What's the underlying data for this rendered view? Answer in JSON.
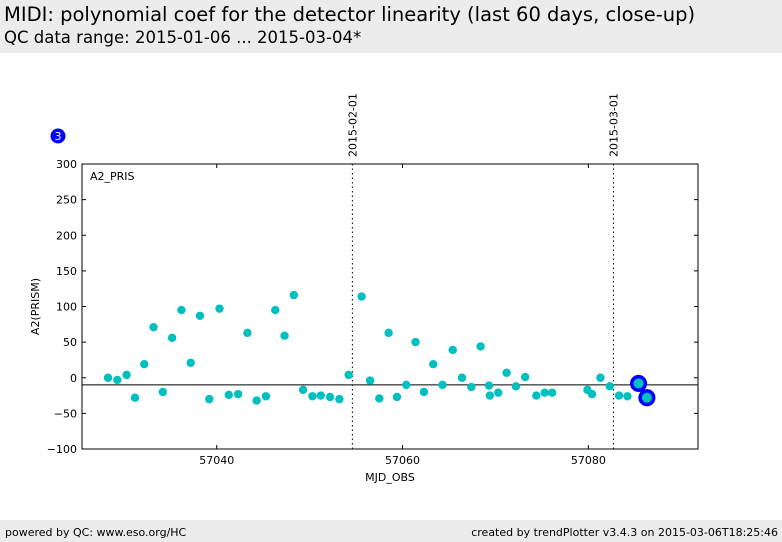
{
  "header": {
    "title": "MIDI: polynomial coef for the detector linearity (last 60 days, close-up)",
    "subtitle": "QC data range: 2015-01-06 ... 2015-03-04*"
  },
  "footer": {
    "left": "powered by QC: www.eso.org/HC",
    "right": "created by trendPlotter v3.4.3 on 2015-03-06T18:25:46"
  },
  "colors": {
    "points": "#00bfbf",
    "highlight": "#0000ff",
    "axis": "#000000"
  },
  "chart_data": {
    "type": "scatter",
    "title": "MIDI: polynomial coef for the detector linearity (last 60 days, close-up)",
    "xlabel": "MJD_OBS",
    "ylabel": "A2(PRISM)",
    "panel_label": "A2_PRIS",
    "xlim": [
      57025.5,
      57091.8
    ],
    "ylim": [
      -100,
      300
    ],
    "xticks": [
      57040,
      57060,
      57080
    ],
    "yticks": [
      -100,
      -50,
      0,
      50,
      100,
      150,
      200,
      250,
      300
    ],
    "reference_line_y": -10,
    "date_markers": [
      {
        "x": 57054.6,
        "label": "2015-02-01"
      },
      {
        "x": 57082.7,
        "label": "2015-03-01"
      }
    ],
    "count_badge": "3",
    "x": [
      57028.3,
      57029.3,
      57030.3,
      57031.2,
      57032.2,
      57033.2,
      57034.2,
      57035.2,
      57036.2,
      57037.2,
      57038.2,
      57039.2,
      57040.3,
      57041.3,
      57042.3,
      57043.3,
      57044.3,
      57045.3,
      57046.3,
      57047.3,
      57048.3,
      57049.3,
      57050.3,
      57051.2,
      57052.2,
      57053.2,
      57054.2,
      57055.6,
      57056.5,
      57057.5,
      57058.5,
      57059.4,
      57060.4,
      57061.4,
      57062.3,
      57063.3,
      57064.3,
      57065.4,
      57066.4,
      57067.4,
      57068.4,
      57069.3,
      57069.4,
      57070.3,
      57071.2,
      57072.2,
      57073.2,
      57074.4,
      57075.3,
      57076.1,
      57079.9,
      57080.4,
      57081.3,
      57082.3,
      57083.3,
      57084.2
    ],
    "y": [
      0,
      -3,
      4,
      -28,
      19,
      71,
      -20,
      56,
      95,
      21,
      87,
      -30,
      97,
      -24,
      -23,
      63,
      -32,
      -26,
      95,
      59,
      116,
      -17,
      -26,
      -25,
      -27,
      -30,
      4,
      114,
      -4,
      -29,
      63,
      -27,
      -10,
      50,
      -20,
      19,
      -10,
      39,
      0,
      -13,
      44,
      -11,
      -25,
      -21,
      7,
      -12,
      1,
      -25,
      -21,
      -21,
      -17,
      -23,
      0,
      -12,
      -25,
      -26
    ],
    "highlighted": [
      {
        "x": 57085.4,
        "y": -8
      },
      {
        "x": 57086.3,
        "y": -28
      }
    ]
  }
}
